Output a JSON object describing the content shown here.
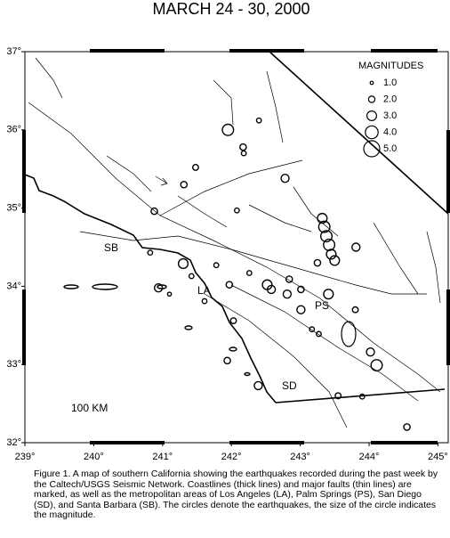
{
  "chart_data": {
    "type": "bubble",
    "title": "MARCH 24 - 30, 2000",
    "xlim": [
      239,
      245.15
    ],
    "ylim": [
      32,
      37
    ],
    "xticks": [
      {
        "value": 239,
        "label": "239°"
      },
      {
        "value": 240,
        "label": "240°"
      },
      {
        "value": 241,
        "label": "241°"
      },
      {
        "value": 242,
        "label": "242°"
      },
      {
        "value": 243,
        "label": "243°"
      },
      {
        "value": 244,
        "label": "244°"
      },
      {
        "value": 245,
        "label": "245°"
      }
    ],
    "yticks": [
      {
        "value": 32,
        "label": "32°"
      },
      {
        "value": 33,
        "label": "33°"
      },
      {
        "value": 34,
        "label": "34°"
      },
      {
        "value": 35,
        "label": "35°"
      },
      {
        "value": 36,
        "label": "36°"
      },
      {
        "value": 37,
        "label": "37°"
      }
    ],
    "legend_title": "MAGNITUDES",
    "legend": [
      {
        "value": 1,
        "label": "1.0"
      },
      {
        "value": 2,
        "label": "2.0"
      },
      {
        "value": 3,
        "label": "3.0"
      },
      {
        "value": 4,
        "label": "4.0"
      },
      {
        "value": 5,
        "label": "5.0"
      }
    ],
    "x": [
      241.95,
      242.17,
      242.18,
      242.4,
      241.48,
      241.31,
      242.78,
      240.88,
      242.08,
      243.32,
      243.35,
      243.38,
      243.42,
      243.45,
      243.5,
      243.81,
      243.25,
      241.3,
      240.82,
      240.94,
      241.78,
      241.97,
      242.52,
      242.58,
      242.81,
      243.01,
      243.41,
      243.01,
      243.8,
      244.02,
      244.11,
      241.94,
      242.39,
      243.55,
      243.9,
      244.55,
      242.84,
      242.26,
      241.61,
      241.42,
      241.1,
      243.17,
      243.27,
      242.03
    ],
    "y": [
      36.0,
      35.78,
      35.7,
      36.12,
      35.52,
      35.3,
      35.38,
      34.96,
      34.97,
      34.87,
      34.76,
      34.64,
      34.53,
      34.41,
      34.33,
      34.5,
      34.3,
      34.29,
      34.43,
      33.98,
      34.27,
      34.02,
      34.02,
      33.96,
      33.9,
      33.96,
      33.9,
      33.7,
      33.7,
      33.16,
      32.99,
      33.05,
      32.73,
      32.6,
      32.59,
      32.2,
      34.09,
      34.17,
      33.81,
      34.13,
      33.9,
      33.45,
      33.39,
      33.56
    ],
    "sizes": [
      3.5,
      2.0,
      1.5,
      1.5,
      1.8,
      2.0,
      2.5,
      2.0,
      1.5,
      3.0,
      3.5,
      3.5,
      3.5,
      3.0,
      3.0,
      2.5,
      2.0,
      3.0,
      1.5,
      2.5,
      1.5,
      2.0,
      3.0,
      2.5,
      2.5,
      2.0,
      3.0,
      2.5,
      1.8,
      2.5,
      3.5,
      2.0,
      2.5,
      1.8,
      1.5,
      2.0,
      2.0,
      1.5,
      1.5,
      1.5,
      1.2,
      1.5,
      1.5,
      1.8
    ],
    "annotations": [
      "SB",
      "LA",
      "PS",
      "SD",
      "100 KM"
    ],
    "caption": "Figure 1. A map of southern California showing the earthquakes recorded during the past week by the Caltech/USGS Seismic Network. Coastlines (thick lines) and major faults (thin lines) are marked, as well as the metropolitan areas of Los Angeles (LA), Palm Springs (PS), San Diego (SD), and Santa Barbara (SB). The circles denote the earthquakes, the size of the circle indicates the magnitude."
  }
}
